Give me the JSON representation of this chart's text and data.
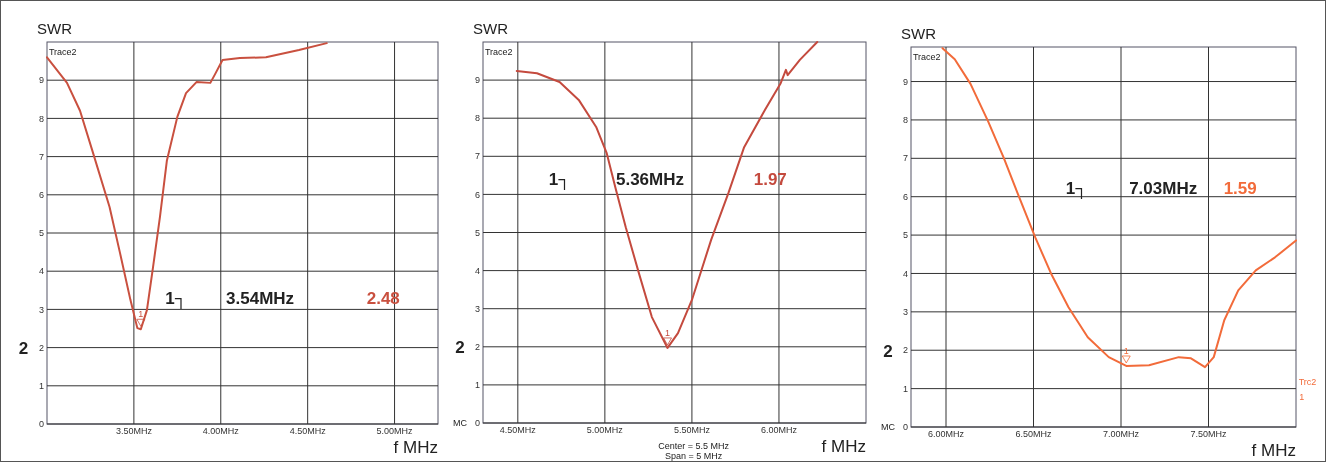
{
  "chart_data": [
    {
      "type": "line",
      "ylabel": "SWR",
      "xlabel": "f MHz",
      "xlim": [
        3.0,
        5.25
      ],
      "ylim": [
        0,
        10
      ],
      "grid": true,
      "xticks": [
        {
          "value": 3.5,
          "label": "3.50MHz"
        },
        {
          "value": 4.0,
          "label": "4.00MHz"
        },
        {
          "value": 4.5,
          "label": "4.50MHz"
        },
        {
          "value": 5.0,
          "label": "5.00MHz"
        }
      ],
      "yticks": [
        0,
        1,
        2,
        3,
        4,
        5,
        6,
        7,
        8,
        9
      ],
      "x": [
        3.0,
        3.115,
        3.19,
        3.26,
        3.36,
        3.42,
        3.48,
        3.52,
        3.54,
        3.575,
        3.61,
        3.65,
        3.69,
        3.75,
        3.8,
        3.86,
        3.94,
        3.965,
        4.01,
        4.11,
        4.26,
        4.45,
        4.61
      ],
      "series": [
        {
          "color": "#c9503f",
          "values": [
            9.6,
            8.93,
            8.2,
            7.17,
            5.68,
            4.48,
            3.25,
            2.51,
            2.48,
            2.98,
            4.1,
            5.42,
            6.9,
            8.04,
            8.66,
            8.95,
            8.93,
            9.14,
            9.53,
            9.58,
            9.6,
            9.79,
            9.97
          ]
        }
      ],
      "annotations": [
        "Trace2",
        "2",
        "1┐",
        "3.54MHz",
        "2.48",
        {
          "text": "1",
          "x": 3.54,
          "y": 2.48
        }
      ]
    },
    {
      "type": "line",
      "ylabel": "SWR",
      "xlabel": "f MHz",
      "xlim": [
        4.3,
        6.5
      ],
      "ylim": [
        0,
        10
      ],
      "grid": true,
      "xticks": [
        {
          "value": 4.5,
          "label": "4.50MHz"
        },
        {
          "value": 5.0,
          "label": "5.00MHz"
        },
        {
          "value": 5.5,
          "label": "5.50MHz"
        },
        {
          "value": 6.0,
          "label": "6.00MHz"
        }
      ],
      "yticks": [
        0,
        1,
        2,
        3,
        4,
        5,
        6,
        7,
        8,
        9
      ],
      "x": [
        4.494,
        4.61,
        4.74,
        4.85,
        4.95,
        5.01,
        5.06,
        5.12,
        5.195,
        5.27,
        5.36,
        5.42,
        5.5,
        5.61,
        5.71,
        5.8,
        5.92,
        6.01,
        6.04,
        6.05,
        6.12,
        6.22
      ],
      "series": [
        {
          "color": "#c44a3e",
          "values": [
            9.24,
            9.18,
            8.95,
            8.48,
            7.77,
            7.09,
            6.19,
            5.14,
            3.94,
            2.78,
            1.97,
            2.36,
            3.23,
            4.8,
            6.04,
            7.24,
            8.22,
            8.92,
            9.27,
            9.13,
            9.53,
            10.0
          ]
        }
      ],
      "annotations": [
        "Trace2",
        "MC",
        "2",
        "1┐",
        "5.36MHz",
        "1.97",
        "Center = 5.5 MHz",
        "Span = 5 MHz",
        {
          "text": "1",
          "x": 5.36,
          "y": 1.97
        }
      ]
    },
    {
      "type": "line",
      "ylabel": "SWR",
      "xlabel": "f MHz",
      "xlim": [
        5.8,
        8.0
      ],
      "ylim": [
        0,
        9.9
      ],
      "grid": true,
      "xticks": [
        {
          "value": 6.0,
          "label": "6.00MHz"
        },
        {
          "value": 6.5,
          "label": "6.50MHz"
        },
        {
          "value": 7.0,
          "label": "7.00MHz"
        },
        {
          "value": 7.5,
          "label": "7.50MHz"
        }
      ],
      "yticks": [
        0,
        1,
        2,
        3,
        4,
        5,
        6,
        7,
        8,
        9
      ],
      "x": [
        5.98,
        6.05,
        6.14,
        6.24,
        6.33,
        6.41,
        6.51,
        6.6,
        6.7,
        6.81,
        6.93,
        7.03,
        7.16,
        7.33,
        7.4,
        7.48,
        7.53,
        7.59,
        7.67,
        7.77,
        7.88,
        8.0
      ],
      "series": [
        {
          "color": "#f26b3a",
          "values": [
            9.87,
            9.58,
            8.94,
            7.97,
            7.01,
            6.08,
            4.94,
            4.0,
            3.12,
            2.34,
            1.82,
            1.59,
            1.61,
            1.82,
            1.79,
            1.56,
            1.82,
            2.78,
            3.56,
            4.08,
            4.42,
            4.86
          ]
        }
      ],
      "annotations": [
        "Trace2",
        "MC",
        "2",
        "1┐",
        "7.03MHz",
        "1.59",
        "Trc2",
        "1",
        {
          "text": "1",
          "x": 7.03,
          "y": 1.59
        }
      ]
    }
  ]
}
